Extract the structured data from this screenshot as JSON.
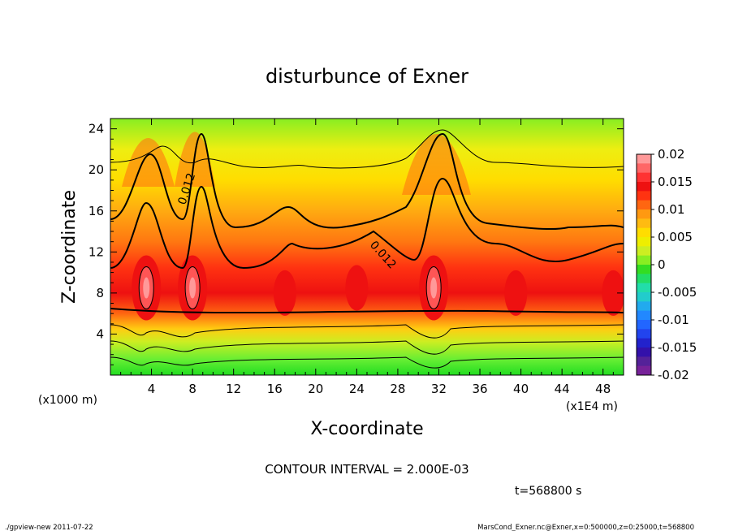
{
  "chart_data": {
    "type": "heatmap",
    "title": "disturbunce of Exner",
    "xlabel": "X-coordinate",
    "ylabel": "Z-coordinate",
    "x_unit": "(x1E4 m)",
    "y_unit": "(x1000 m)",
    "xlim": [
      0,
      50
    ],
    "ylim": [
      0,
      25
    ],
    "x_ticks": [
      4,
      8,
      12,
      16,
      20,
      24,
      28,
      32,
      36,
      40,
      44,
      48
    ],
    "y_ticks": [
      4,
      8,
      12,
      16,
      20,
      24
    ],
    "colorbar": {
      "min": -0.02,
      "max": 0.02,
      "tick_labels": [
        "0.02",
        "0.015",
        "0.01",
        "0.005",
        "0",
        "-0.005",
        "-0.01",
        "-0.015",
        "-0.02"
      ]
    },
    "contour_labels": [
      "0.012",
      "0.012"
    ],
    "contour_interval": "CONTOUR INTERVAL = 2.000E-03",
    "time": "t=568800 s",
    "peaks": [
      {
        "x": 3.5,
        "z": 8.5,
        "value": 0.019
      },
      {
        "x": 8.0,
        "z": 8.5,
        "value": 0.018
      },
      {
        "x": 17.0,
        "z": 8.0,
        "value": 0.016
      },
      {
        "x": 24.0,
        "z": 8.5,
        "value": 0.016
      },
      {
        "x": 31.5,
        "z": 8.5,
        "value": 0.019
      },
      {
        "x": 39.5,
        "z": 8.0,
        "value": 0.016
      },
      {
        "x": 49.0,
        "z": 8.0,
        "value": 0.016
      }
    ]
  },
  "footer": {
    "left": "./gpview-new   2011-07-22",
    "right": "MarsCond_Exner.nc@Exner,x=0:500000,z=0:25000,t=568800"
  }
}
